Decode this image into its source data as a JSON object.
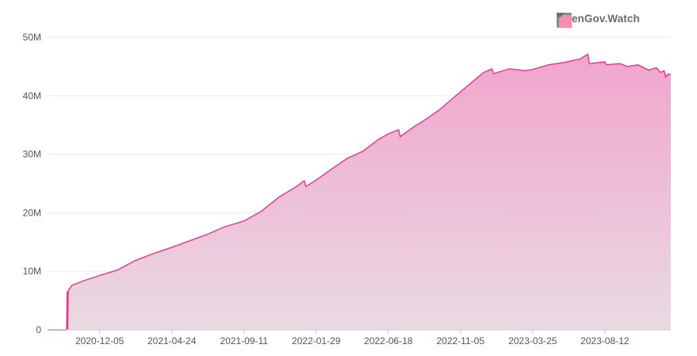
{
  "brand": {
    "name": "OpenGov.Watch",
    "logo_icon": "opengov-watch-logo-icon",
    "logo_colors": [
      "#8c8c8c",
      "#f48fb1"
    ]
  },
  "chart_data": {
    "type": "area",
    "title": "",
    "xlabel": "",
    "ylabel": "",
    "y_unit": "M",
    "ylim": [
      0,
      50
    ],
    "y_ticks": [
      0,
      10,
      20,
      30,
      40,
      50
    ],
    "y_tick_labels": [
      "0",
      "10M",
      "20M",
      "30M",
      "40M",
      "50M"
    ],
    "x_tick_labels": [
      "2020-12-05",
      "2021-04-24",
      "2021-09-11",
      "2022-01-29",
      "2022-06-18",
      "2022-11-05",
      "2023-03-25",
      "2023-08-12"
    ],
    "xlim": [
      "2020-08-26",
      "2023-12-18"
    ],
    "grid": true,
    "legend": false,
    "line_color": "#e6338f",
    "fill_top_color": "#f0a0ca",
    "fill_bottom_color": "#e8d8e0",
    "series": [
      {
        "values": [
          [
            "2020-08-26",
            0
          ],
          [
            "2020-10-02",
            0
          ],
          [
            "2020-10-03",
            6.5
          ],
          [
            "2020-10-04",
            0
          ],
          [
            "2020-10-05",
            6.7
          ],
          [
            "2020-10-12",
            7.6
          ],
          [
            "2020-11-01",
            8.3
          ],
          [
            "2020-12-05",
            9.3
          ],
          [
            "2021-01-08",
            10.2
          ],
          [
            "2021-02-11",
            11.8
          ],
          [
            "2021-03-18",
            13.0
          ],
          [
            "2021-04-24",
            14.1
          ],
          [
            "2021-05-28",
            15.2
          ],
          [
            "2021-07-01",
            16.3
          ],
          [
            "2021-08-04",
            17.6
          ],
          [
            "2021-09-11",
            18.6
          ],
          [
            "2021-10-15",
            20.3
          ],
          [
            "2021-11-18",
            22.7
          ],
          [
            "2021-12-22",
            24.5
          ],
          [
            "2022-01-06",
            25.5
          ],
          [
            "2022-01-09",
            24.5
          ],
          [
            "2022-01-29",
            25.6
          ],
          [
            "2022-02-28",
            27.5
          ],
          [
            "2022-03-30",
            29.3
          ],
          [
            "2022-04-29",
            30.5
          ],
          [
            "2022-05-29",
            32.5
          ],
          [
            "2022-06-18",
            33.5
          ],
          [
            "2022-07-08",
            34.2
          ],
          [
            "2022-07-11",
            33.0
          ],
          [
            "2022-08-03",
            34.5
          ],
          [
            "2022-08-30",
            36.0
          ],
          [
            "2022-09-25",
            37.6
          ],
          [
            "2022-10-20",
            39.5
          ],
          [
            "2022-11-20",
            41.8
          ],
          [
            "2022-12-20",
            44.0
          ],
          [
            "2023-01-05",
            44.6
          ],
          [
            "2023-01-08",
            43.8
          ],
          [
            "2023-02-08",
            44.6
          ],
          [
            "2023-03-10",
            44.3
          ],
          [
            "2023-03-25",
            44.5
          ],
          [
            "2023-04-25",
            45.3
          ],
          [
            "2023-05-25",
            45.7
          ],
          [
            "2023-06-25",
            46.3
          ],
          [
            "2023-07-10",
            47.1
          ],
          [
            "2023-07-13",
            45.5
          ],
          [
            "2023-08-12",
            45.8
          ],
          [
            "2023-08-15",
            45.3
          ],
          [
            "2023-09-10",
            45.5
          ],
          [
            "2023-09-25",
            45.0
          ],
          [
            "2023-10-15",
            45.3
          ],
          [
            "2023-11-05",
            44.4
          ],
          [
            "2023-11-20",
            44.8
          ],
          [
            "2023-11-28",
            44.0
          ],
          [
            "2023-12-05",
            44.3
          ],
          [
            "2023-12-08",
            43.2
          ],
          [
            "2023-12-12",
            43.7
          ],
          [
            "2023-12-18",
            43.6
          ]
        ]
      }
    ]
  }
}
